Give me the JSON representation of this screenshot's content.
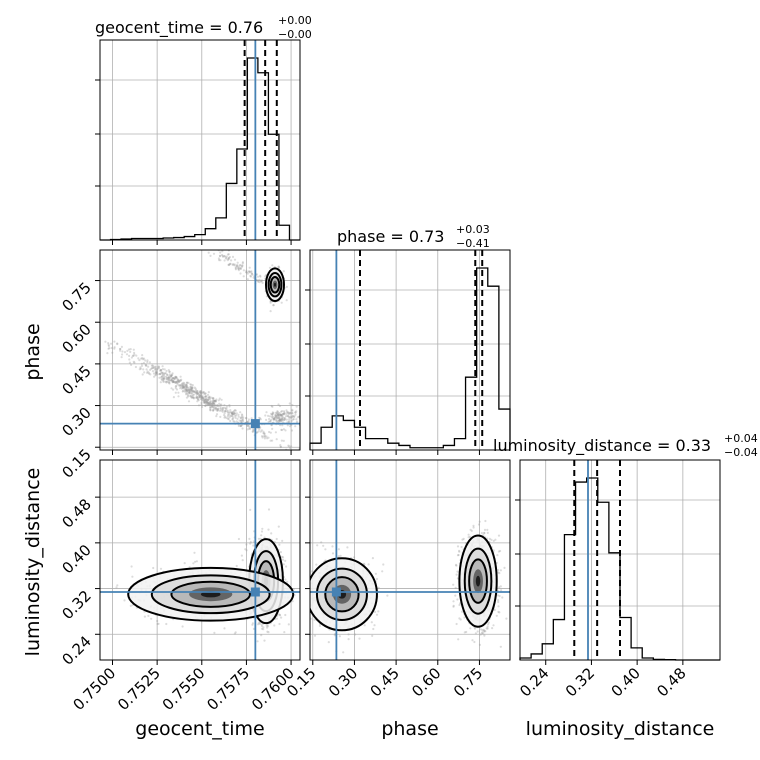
{
  "chart_data": {
    "type": "corner",
    "colors": {
      "truth": "#4682b4",
      "histogram": "#000000",
      "samples": "#9a9a9a",
      "grid": "#b0b0b0"
    },
    "parameters": [
      {
        "name": "geocent_time",
        "title_label": "geocent_time = 0.76",
        "median": 0.76,
        "upper_err": "+0.00",
        "lower_err": "−0.00",
        "range": [
          0.7493,
          0.7605
        ],
        "ticks": [
          0.75,
          0.7525,
          0.755,
          0.7575,
          0.76
        ],
        "tick_labels": [
          "0.7500",
          "0.7525",
          "0.7550",
          "0.7575",
          "0.7600"
        ],
        "truth": 0.758,
        "quantiles": [
          0.7574,
          0.75855,
          0.7592
        ],
        "hist_counts": [
          0,
          1,
          2,
          3,
          3,
          3,
          4,
          5,
          7,
          11,
          23,
          45,
          115,
          185,
          370,
          340,
          215,
          30,
          0
        ]
      },
      {
        "name": "phase",
        "title_label": "phase = 0.73",
        "median": 0.73,
        "upper_err": "+0.03",
        "lower_err": "−0.41",
        "range": [
          0.14,
          0.86
        ],
        "ticks": [
          0.15,
          0.3,
          0.45,
          0.6,
          0.75
        ],
        "tick_labels": [
          "0.15",
          "0.30",
          "0.45",
          "0.60",
          "0.75"
        ],
        "truth": 0.235,
        "quantiles": [
          0.32,
          0.735,
          0.76
        ],
        "hist_counts": [
          3,
          10,
          15,
          13,
          10,
          5,
          5,
          3,
          2,
          1,
          1,
          1,
          2,
          5,
          32,
          80,
          72,
          18
        ]
      },
      {
        "name": "luminosity_distance",
        "title_label": "luminosity_distance = 0.33",
        "median": 0.33,
        "upper_err": "+0.04",
        "lower_err": "−0.04",
        "range": [
          0.195,
          0.545
        ],
        "ticks": [
          0.24,
          0.32,
          0.4,
          0.48
        ],
        "tick_labels": [
          "0.24",
          "0.32",
          "0.40",
          "0.48"
        ],
        "truth": 0.314,
        "quantiles": [
          0.29,
          0.33,
          0.37
        ],
        "hist_counts": [
          0.1,
          0.3,
          0.8,
          2,
          6.2,
          8.8,
          9,
          7.8,
          5.3,
          2.1,
          0.6,
          0.1,
          0.03,
          0.02,
          0,
          0,
          0,
          0
        ]
      }
    ],
    "pairs": [
      {
        "x": "geocent_time",
        "y": "phase",
        "clusters": [
          {
            "cx": 0.7591,
            "cy": 0.735,
            "sx": 0.00024,
            "sy": 0.028,
            "n": 300
          },
          {
            "cx": 0.757,
            "cy": 0.8,
            "sx": 0.0011,
            "sy": 0.012,
            "n": 120,
            "slope": -40
          },
          {
            "cx": 0.7547,
            "cy": 0.34,
            "sx": 0.0022,
            "sy": 0.014,
            "n": 700,
            "slope": -37
          },
          {
            "cx": 0.7595,
            "cy": 0.255,
            "sx": 0.0005,
            "sy": 0.018,
            "n": 180
          }
        ]
      },
      {
        "x": "geocent_time",
        "y": "luminosity_distance",
        "clusters": [
          {
            "cx": 0.7586,
            "cy": 0.333,
            "sx": 0.00045,
            "sy": 0.035,
            "n": 1100
          },
          {
            "cx": 0.7555,
            "cy": 0.31,
            "sx": 0.0022,
            "sy": 0.022,
            "n": 500
          }
        ]
      },
      {
        "x": "phase",
        "y": "luminosity_distance",
        "clusters": [
          {
            "cx": 0.745,
            "cy": 0.333,
            "sx": 0.032,
            "sy": 0.038,
            "n": 1100
          },
          {
            "cx": 0.255,
            "cy": 0.31,
            "sx": 0.06,
            "sy": 0.03,
            "n": 650
          }
        ]
      }
    ],
    "grid": true
  }
}
